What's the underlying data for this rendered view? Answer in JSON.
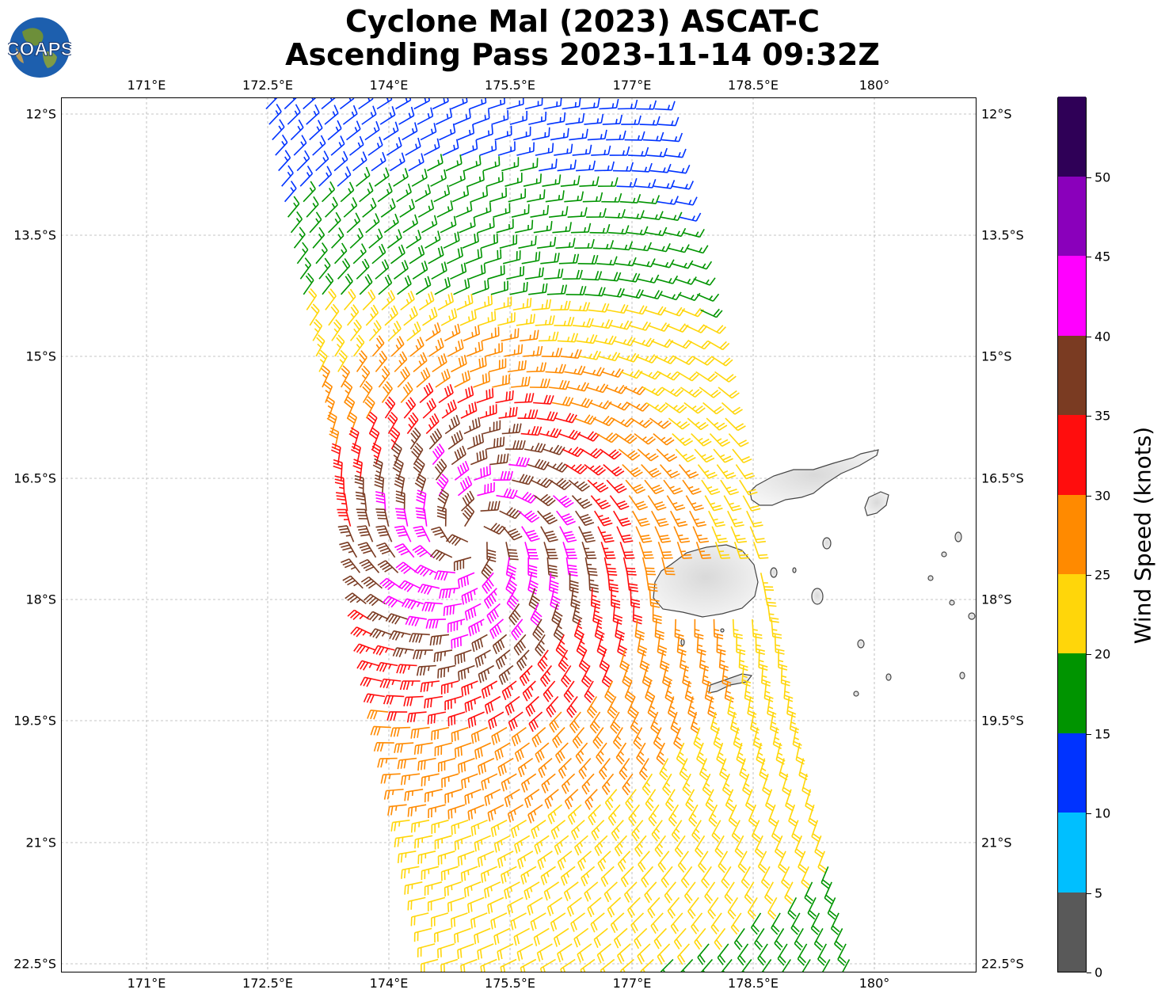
{
  "title": {
    "line1": "Cyclone Mal (2023) ASCAT-C",
    "line2": "Ascending Pass 2023-11-14 09:32Z"
  },
  "logo": {
    "text": "COAPS"
  },
  "axes": {
    "lon_ticks": [
      "171°E",
      "172.5°E",
      "174°E",
      "175.5°E",
      "177°E",
      "178.5°E",
      "180°"
    ],
    "lat_ticks": [
      "12°S",
      "13.5°S",
      "15°S",
      "16.5°S",
      "18°S",
      "19.5°S",
      "21°S",
      "22.5°S"
    ]
  },
  "colorbar": {
    "title": "Wind Speed (knots)",
    "labels": [
      "0",
      "5",
      "10",
      "15",
      "20",
      "25",
      "30",
      "35",
      "40",
      "45",
      "50"
    ],
    "colors": [
      "#595959",
      "#00bfff",
      "#0033ff",
      "#009400",
      "#ffd60a",
      "#ff8a00",
      "#ff0d0d",
      "#7a3b22",
      "#ff00ff",
      "#8a00bb",
      "#2f0057"
    ]
  },
  "chart_data": {
    "type": "wind_barbs",
    "units": "knots",
    "lon_range": [
      170.0,
      181.3
    ],
    "lat_range": [
      -22.6,
      -11.8
    ],
    "center": {
      "lon": 175.4,
      "lat": -16.8
    }
  }
}
